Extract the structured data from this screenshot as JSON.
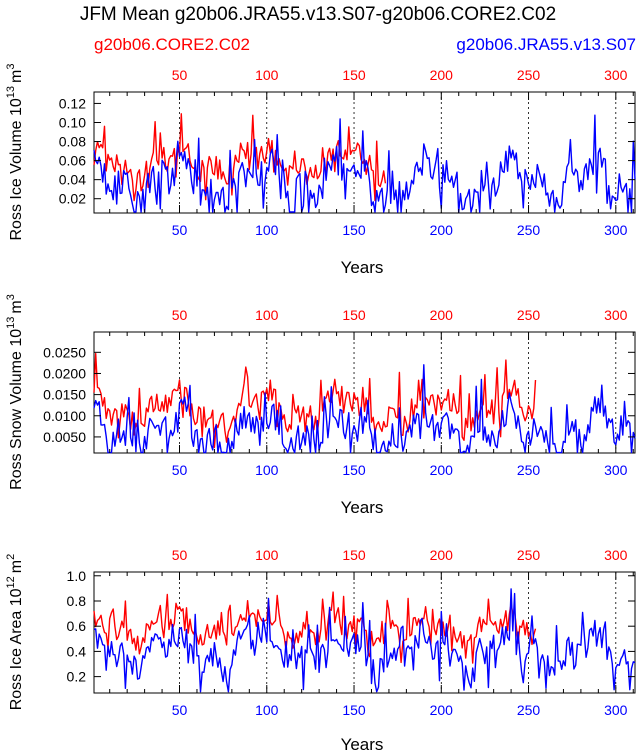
{
  "figure": {
    "title": "JFM Mean g20b06.JRA55.v13.S07-g20b06.CORE2.C02",
    "legend_left": "g20b06.CORE2.C02",
    "legend_right": "g20b06.JRA55.v13.S07"
  },
  "colors": {
    "red": "#ff0000",
    "blue": "#0000ff",
    "axis": "#000000"
  },
  "chart_data": [
    {
      "type": "line",
      "id": "ice-volume",
      "title": "",
      "ylabel": "Ross Ice Volume 10^13 m^3",
      "ylabel_main": "Ross Ice Volume 10",
      "ylabel_exp": "13",
      "ylabel_unit": "m",
      "ylabel_unit_exp": "3",
      "xlabel": "Years",
      "xlim": [
        1,
        311
      ],
      "ylim": [
        0.005,
        0.132
      ],
      "yticks": [
        0.02,
        0.04,
        0.06,
        0.08,
        0.1,
        0.12
      ],
      "ytick_labels": [
        "0.02",
        "0.04",
        "0.06",
        "0.08",
        "0.10",
        "0.12"
      ],
      "xticks_bottom": [
        50,
        100,
        150,
        200,
        250,
        300
      ],
      "xticks_top": [
        50,
        100,
        150,
        200,
        250,
        300
      ],
      "dashed_x": [
        50,
        100,
        150,
        200,
        250,
        300
      ],
      "series": [
        {
          "name": "g20b06.CORE2.C02",
          "color": "#ff0000",
          "x_start": 1,
          "x_end": 168,
          "base": 0.058,
          "amp": 0.072,
          "floor": 0.018,
          "cap": 0.126,
          "seed": 11
        },
        {
          "name": "g20b06.JRA55.v13.S07",
          "color": "#0000ff",
          "x_start": 1,
          "x_end": 311,
          "base": 0.038,
          "amp": 0.088,
          "floor": 0.006,
          "cap": 0.128,
          "seed": 29
        }
      ]
    },
    {
      "type": "line",
      "id": "snow-volume",
      "title": "",
      "ylabel": "Ross Snow Volume 10^13 m^3",
      "ylabel_main": "Ross Snow Volume 10",
      "ylabel_exp": "13",
      "ylabel_unit": "m",
      "ylabel_unit_exp": "3",
      "xlabel": "Years",
      "xlim": [
        1,
        311
      ],
      "ylim": [
        0.0012,
        0.0298
      ],
      "yticks": [
        0.005,
        0.01,
        0.015,
        0.02,
        0.025
      ],
      "ytick_labels": [
        "0.0050",
        "0.0100",
        "0.0150",
        "0.0200",
        "0.0250"
      ],
      "xticks_bottom": [
        50,
        100,
        150,
        200,
        250,
        300
      ],
      "xticks_top": [
        50,
        100,
        150,
        200,
        250,
        300
      ],
      "dashed_x": [
        50,
        100,
        150,
        200,
        250,
        300
      ],
      "series": [
        {
          "name": "g20b06.CORE2.C02",
          "color": "#ff0000",
          "x_start": 1,
          "x_end": 254,
          "base": 0.0115,
          "amp": 0.017,
          "floor": 0.0025,
          "cap": 0.0292,
          "seed": 43
        },
        {
          "name": "g20b06.JRA55.v13.S07",
          "color": "#0000ff",
          "x_start": 1,
          "x_end": 311,
          "base": 0.006,
          "amp": 0.02,
          "floor": 0.0013,
          "cap": 0.028,
          "seed": 71
        }
      ]
    },
    {
      "type": "line",
      "id": "ice-area",
      "title": "",
      "ylabel": "Ross Ice Area 10^12 m^2",
      "ylabel_main": "Ross Ice Area 10",
      "ylabel_exp": "12",
      "ylabel_unit": "m",
      "ylabel_unit_exp": "2",
      "xlabel": "Years",
      "xlim": [
        1,
        311
      ],
      "ylim": [
        0.07,
        1.03
      ],
      "yticks": [
        0.2,
        0.4,
        0.6,
        0.8,
        1.0
      ],
      "ytick_labels": [
        "0.2",
        "0.4",
        "0.6",
        "0.8",
        "1.0"
      ],
      "xticks_bottom": [
        50,
        100,
        150,
        200,
        250,
        300
      ],
      "xticks_top": [
        50,
        100,
        150,
        200,
        250,
        300
      ],
      "dashed_x": [
        50,
        100,
        150,
        200,
        250,
        300
      ],
      "series": [
        {
          "name": "g20b06.CORE2.C02",
          "color": "#ff0000",
          "x_start": 1,
          "x_end": 254,
          "base": 0.58,
          "amp": 0.42,
          "floor": 0.15,
          "cap": 1.0,
          "seed": 97
        },
        {
          "name": "g20b06.JRA55.v13.S07",
          "color": "#0000ff",
          "x_start": 1,
          "x_end": 311,
          "base": 0.4,
          "amp": 0.56,
          "floor": 0.08,
          "cap": 1.0,
          "seed": 131
        }
      ]
    }
  ]
}
